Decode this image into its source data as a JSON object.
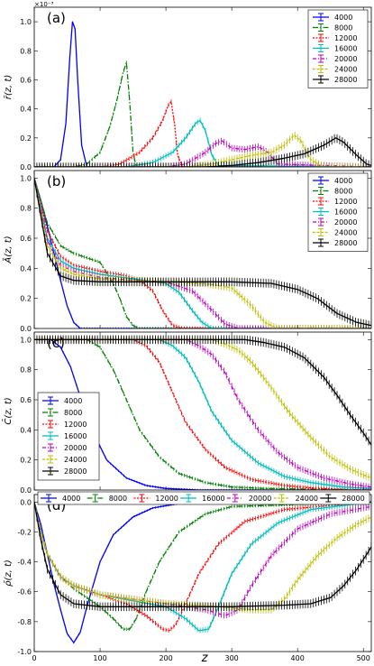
{
  "figure": {
    "xlabel": "z",
    "series_colors": {
      "4000": "#0000ff",
      "8000": "#008000",
      "12000": "#ff0000",
      "16000": "#00bfbf",
      "20000": "#bf00bf",
      "24000": "#bfbf00",
      "28000": "#000000"
    }
  },
  "chart_data": [
    {
      "type": "line",
      "panel_label": "(a)",
      "ylabel": "r̄(z, t)",
      "exponent_label": "×10⁻³",
      "xlim": [
        0,
        512
      ],
      "ylim": [
        0,
        1.1
      ],
      "xticks": [
        "0",
        "100",
        "200",
        "300",
        "400",
        "500"
      ],
      "yticks": [
        "0.0",
        "0.2",
        "0.4",
        "0.6",
        "0.8",
        "1.0"
      ],
      "ytick_values": [
        0,
        0.2,
        0.4,
        0.6,
        0.8,
        1.0
      ],
      "legend": "top-right",
      "series": [
        {
          "name": "4000",
          "x": [
            0,
            30,
            40,
            48,
            54,
            58,
            62,
            66,
            72,
            80,
            90,
            512
          ],
          "y": [
            0,
            0.0,
            0.05,
            0.3,
            0.75,
            1.0,
            0.95,
            0.6,
            0.15,
            0.0,
            0,
            0
          ]
        },
        {
          "name": "8000",
          "x": [
            0,
            60,
            80,
            100,
            115,
            125,
            135,
            140,
            145,
            150,
            155,
            512
          ],
          "y": [
            0,
            0,
            0.02,
            0.1,
            0.28,
            0.45,
            0.65,
            0.72,
            0.45,
            0.1,
            0,
            0
          ]
        },
        {
          "name": "12000",
          "x": [
            0,
            100,
            130,
            160,
            180,
            195,
            203,
            208,
            213,
            218,
            225,
            512
          ],
          "y": [
            0,
            0,
            0.02,
            0.1,
            0.2,
            0.32,
            0.42,
            0.45,
            0.3,
            0.08,
            0,
            0
          ]
        },
        {
          "name": "16000",
          "x": [
            0,
            140,
            180,
            210,
            230,
            245,
            252,
            260,
            270,
            280,
            512
          ],
          "y": [
            0,
            0,
            0.03,
            0.1,
            0.2,
            0.3,
            0.32,
            0.25,
            0.08,
            0.01,
            0
          ]
        },
        {
          "name": "20000",
          "x": [
            0,
            200,
            230,
            260,
            275,
            285,
            300,
            320,
            340,
            355,
            370,
            512
          ],
          "y": [
            0,
            0,
            0.02,
            0.1,
            0.16,
            0.18,
            0.13,
            0.12,
            0.14,
            0.1,
            0.02,
            0
          ]
        },
        {
          "name": "24000",
          "x": [
            0,
            230,
            270,
            300,
            330,
            360,
            380,
            395,
            405,
            420,
            440,
            512
          ],
          "y": [
            0,
            0,
            0.02,
            0.05,
            0.08,
            0.1,
            0.15,
            0.22,
            0.18,
            0.05,
            0,
            0
          ]
        },
        {
          "name": "28000",
          "x": [
            0,
            260,
            300,
            340,
            380,
            410,
            440,
            458,
            470,
            490,
            505,
            512
          ],
          "y": [
            0,
            0,
            0.01,
            0.03,
            0.06,
            0.09,
            0.15,
            0.2,
            0.17,
            0.08,
            0.02,
            0.01
          ]
        }
      ]
    },
    {
      "type": "line",
      "panel_label": "(b)",
      "ylabel": "Ā(z, t)",
      "xlim": [
        0,
        512
      ],
      "ylim": [
        0,
        1.05
      ],
      "xticks": [
        "0",
        "100",
        "200",
        "300",
        "400",
        "500"
      ],
      "yticks": [
        "0.0",
        "0.2",
        "0.4",
        "0.6",
        "0.8",
        "1.0"
      ],
      "ytick_values": [
        0,
        0.2,
        0.4,
        0.6,
        0.8,
        1.0
      ],
      "legend": "top-right",
      "series": [
        {
          "name": "4000",
          "x": [
            0,
            10,
            20,
            30,
            40,
            50,
            60,
            70,
            80,
            512
          ],
          "y": [
            1.0,
            0.85,
            0.68,
            0.5,
            0.32,
            0.15,
            0.04,
            0.0,
            0,
            0
          ]
        },
        {
          "name": "8000",
          "x": [
            0,
            20,
            40,
            60,
            80,
            100,
            120,
            130,
            140,
            150,
            160,
            512
          ],
          "y": [
            1.0,
            0.7,
            0.55,
            0.5,
            0.47,
            0.44,
            0.3,
            0.2,
            0.08,
            0.02,
            0,
            0
          ]
        },
        {
          "name": "12000",
          "x": [
            0,
            20,
            40,
            60,
            100,
            140,
            160,
            180,
            195,
            210,
            225,
            512
          ],
          "y": [
            1.0,
            0.65,
            0.48,
            0.42,
            0.38,
            0.35,
            0.32,
            0.25,
            0.12,
            0.02,
            0,
            0
          ]
        },
        {
          "name": "16000",
          "x": [
            0,
            20,
            40,
            60,
            100,
            150,
            200,
            220,
            240,
            255,
            270,
            512
          ],
          "y": [
            1.0,
            0.6,
            0.45,
            0.4,
            0.36,
            0.33,
            0.3,
            0.24,
            0.12,
            0.04,
            0,
            0
          ]
        },
        {
          "name": "20000",
          "x": [
            0,
            20,
            40,
            60,
            100,
            150,
            200,
            240,
            270,
            290,
            310,
            512
          ],
          "y": [
            1.0,
            0.58,
            0.42,
            0.38,
            0.34,
            0.32,
            0.31,
            0.25,
            0.12,
            0.03,
            0,
            0
          ]
        },
        {
          "name": "24000",
          "x": [
            0,
            20,
            40,
            60,
            100,
            200,
            260,
            300,
            330,
            350,
            370,
            512
          ],
          "y": [
            1.0,
            0.55,
            0.4,
            0.36,
            0.33,
            0.31,
            0.3,
            0.27,
            0.15,
            0.04,
            0,
            0
          ]
        },
        {
          "name": "28000",
          "x": [
            0,
            20,
            40,
            60,
            100,
            200,
            300,
            360,
            400,
            430,
            460,
            490,
            512
          ],
          "y": [
            1.0,
            0.5,
            0.35,
            0.32,
            0.31,
            0.31,
            0.31,
            0.3,
            0.26,
            0.2,
            0.1,
            0.04,
            0.02
          ]
        }
      ]
    },
    {
      "type": "line",
      "panel_label": "(c)",
      "ylabel": "C̄(z, t)",
      "xlim": [
        0,
        512
      ],
      "ylim": [
        0,
        1.05
      ],
      "xticks": [
        "0",
        "100",
        "200",
        "300",
        "400",
        "500"
      ],
      "yticks": [
        "0.0",
        "0.2",
        "0.4",
        "0.6",
        "0.8",
        "1.0"
      ],
      "ytick_values": [
        0,
        0.2,
        0.4,
        0.6,
        0.8,
        1.0
      ],
      "legend": "left",
      "series": [
        {
          "name": "4000",
          "x": [
            0,
            25,
            40,
            55,
            70,
            90,
            110,
            140,
            170,
            200,
            250,
            512
          ],
          "y": [
            1.0,
            1.0,
            0.95,
            0.82,
            0.62,
            0.38,
            0.2,
            0.08,
            0.03,
            0.01,
            0,
            0
          ]
        },
        {
          "name": "8000",
          "x": [
            0,
            80,
            100,
            120,
            140,
            160,
            190,
            220,
            260,
            300,
            350,
            512
          ],
          "y": [
            1.0,
            1.0,
            0.95,
            0.8,
            0.6,
            0.4,
            0.22,
            0.11,
            0.05,
            0.02,
            0.01,
            0
          ]
        },
        {
          "name": "12000",
          "x": [
            0,
            150,
            170,
            190,
            210,
            230,
            260,
            290,
            330,
            380,
            430,
            512
          ],
          "y": [
            1.0,
            1.0,
            0.96,
            0.85,
            0.65,
            0.45,
            0.27,
            0.15,
            0.07,
            0.03,
            0.01,
            0
          ]
        },
        {
          "name": "16000",
          "x": [
            0,
            190,
            210,
            230,
            250,
            270,
            300,
            340,
            380,
            420,
            470,
            512
          ],
          "y": [
            1.0,
            1.0,
            0.96,
            0.88,
            0.72,
            0.52,
            0.33,
            0.18,
            0.09,
            0.05,
            0.02,
            0.01
          ]
        },
        {
          "name": "20000",
          "x": [
            0,
            230,
            250,
            270,
            290,
            310,
            340,
            370,
            400,
            440,
            480,
            512
          ],
          "y": [
            1.0,
            1.0,
            0.96,
            0.9,
            0.78,
            0.6,
            0.4,
            0.25,
            0.15,
            0.08,
            0.04,
            0.02
          ]
        },
        {
          "name": "24000",
          "x": [
            0,
            270,
            290,
            310,
            330,
            360,
            390,
            420,
            450,
            480,
            500,
            512
          ],
          "y": [
            1.0,
            1.0,
            0.97,
            0.93,
            0.85,
            0.68,
            0.5,
            0.35,
            0.22,
            0.14,
            0.1,
            0.08
          ]
        },
        {
          "name": "28000",
          "x": [
            0,
            320,
            350,
            380,
            410,
            440,
            460,
            480,
            500,
            512
          ],
          "y": [
            1.0,
            1.0,
            0.98,
            0.95,
            0.88,
            0.75,
            0.63,
            0.5,
            0.38,
            0.3
          ]
        }
      ]
    },
    {
      "type": "line",
      "panel_label": "(d)",
      "ylabel": "ρ̄(z, t)",
      "xlim": [
        0,
        512
      ],
      "ylim": [
        -1.0,
        0.05
      ],
      "xticks": [
        "0",
        "100",
        "200",
        "300",
        "400",
        "500"
      ],
      "yticks": [
        "-1.0",
        "-0.8",
        "-0.6",
        "-0.4",
        "-0.2",
        "0.0"
      ],
      "ytick_values": [
        -1.0,
        -0.8,
        -0.6,
        -0.4,
        -0.2,
        0.0
      ],
      "legend": "top (horizontal)",
      "series": [
        {
          "name": "4000",
          "x": [
            0,
            10,
            20,
            30,
            40,
            50,
            60,
            70,
            80,
            100,
            120,
            150,
            180,
            220,
            260,
            512
          ],
          "y": [
            0.0,
            -0.15,
            -0.35,
            -0.55,
            -0.72,
            -0.88,
            -0.94,
            -0.87,
            -0.7,
            -0.4,
            -0.22,
            -0.1,
            -0.04,
            -0.01,
            0,
            0
          ]
        },
        {
          "name": "8000",
          "x": [
            0,
            10,
            20,
            40,
            60,
            80,
            100,
            120,
            135,
            145,
            155,
            170,
            190,
            220,
            260,
            300,
            512
          ],
          "y": [
            0.0,
            -0.2,
            -0.35,
            -0.5,
            -0.58,
            -0.64,
            -0.7,
            -0.78,
            -0.85,
            -0.85,
            -0.78,
            -0.6,
            -0.4,
            -0.2,
            -0.08,
            -0.03,
            0
          ]
        },
        {
          "name": "12000",
          "x": [
            0,
            10,
            20,
            40,
            60,
            100,
            140,
            170,
            195,
            205,
            215,
            230,
            250,
            280,
            320,
            380,
            512
          ],
          "y": [
            0.0,
            -0.2,
            -0.35,
            -0.5,
            -0.56,
            -0.62,
            -0.68,
            -0.76,
            -0.85,
            -0.86,
            -0.82,
            -0.68,
            -0.48,
            -0.28,
            -0.13,
            -0.05,
            0
          ]
        },
        {
          "name": "16000",
          "x": [
            0,
            10,
            20,
            40,
            60,
            100,
            150,
            200,
            230,
            250,
            265,
            280,
            300,
            330,
            370,
            420,
            512
          ],
          "y": [
            0.0,
            -0.2,
            -0.35,
            -0.5,
            -0.56,
            -0.62,
            -0.66,
            -0.7,
            -0.78,
            -0.86,
            -0.85,
            -0.7,
            -0.48,
            -0.28,
            -0.14,
            -0.05,
            0
          ]
        },
        {
          "name": "20000",
          "x": [
            0,
            10,
            20,
            40,
            60,
            100,
            200,
            260,
            290,
            310,
            330,
            360,
            400,
            450,
            512
          ],
          "y": [
            0.0,
            -0.2,
            -0.35,
            -0.5,
            -0.56,
            -0.62,
            -0.68,
            -0.72,
            -0.76,
            -0.72,
            -0.56,
            -0.36,
            -0.18,
            -0.08,
            -0.03
          ]
        },
        {
          "name": "24000",
          "x": [
            0,
            10,
            20,
            40,
            60,
            100,
            200,
            280,
            330,
            360,
            380,
            400,
            430,
            460,
            490,
            512
          ],
          "y": [
            0.0,
            -0.2,
            -0.35,
            -0.5,
            -0.56,
            -0.62,
            -0.68,
            -0.7,
            -0.72,
            -0.72,
            -0.65,
            -0.52,
            -0.36,
            -0.24,
            -0.15,
            -0.1
          ]
        },
        {
          "name": "28000",
          "x": [
            0,
            10,
            20,
            40,
            60,
            100,
            200,
            300,
            380,
            420,
            450,
            470,
            490,
            505,
            512
          ],
          "y": [
            0.0,
            -0.25,
            -0.45,
            -0.62,
            -0.68,
            -0.7,
            -0.7,
            -0.7,
            -0.69,
            -0.68,
            -0.64,
            -0.56,
            -0.45,
            -0.35,
            -0.3
          ]
        }
      ]
    }
  ]
}
